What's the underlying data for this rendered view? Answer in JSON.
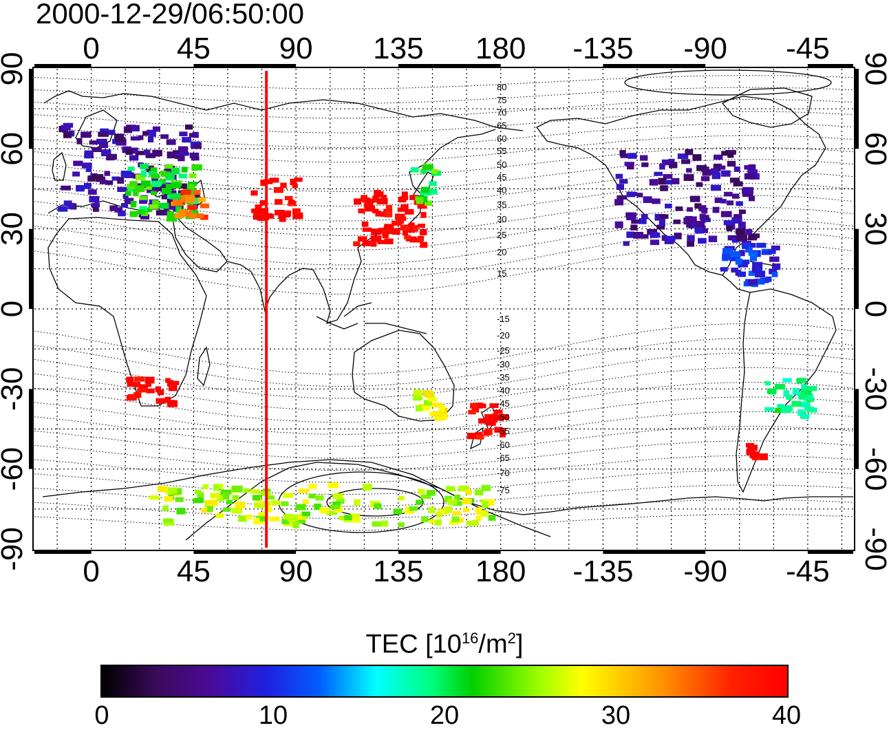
{
  "title": "2000-12-29/06:50:00",
  "map": {
    "projection": "cylindrical-equidistant",
    "lon_ticks_top": [
      "0",
      "45",
      "90",
      "135",
      "180",
      "-135",
      "-90",
      "-45"
    ],
    "lon_ticks_bottom": [
      "0",
      "45",
      "90",
      "135",
      "180",
      "-135",
      "-90",
      "-45"
    ],
    "lat_ticks_left": [
      "90",
      "60",
      "30",
      "0",
      "-30",
      "-60",
      "-90"
    ],
    "lat_ticks_right": [
      "90",
      "60",
      "30",
      "0",
      "-30",
      "-60",
      "-90"
    ],
    "magnetic_latitude_labels": [
      "80",
      "75",
      "70",
      "65",
      "60",
      "55",
      "50",
      "45",
      "40",
      "35",
      "30",
      "25",
      "20",
      "15",
      "-15",
      "-20",
      "-25",
      "-30",
      "-35",
      "-40",
      "-45",
      "-50",
      "-55",
      "-60",
      "-65",
      "-70",
      "-75"
    ],
    "meridian_marker": {
      "longitude": 77,
      "color": "#ff0000"
    },
    "grid": "dotted"
  },
  "colorbar": {
    "label_main": "TEC  [10",
    "label_sup1": "16",
    "label_mid": "/m",
    "label_sup2": "2",
    "label_end": "]",
    "ticks": [
      "0",
      "10",
      "20",
      "30",
      "40"
    ],
    "range": [
      0,
      40
    ],
    "colormap": "jet-like (black-purple-blue-cyan-green-yellow-red)"
  },
  "chart_data": {
    "type": "heatmap",
    "title": "2000-12-29/06:50:00",
    "xlabel": "",
    "ylabel": "",
    "xlim": [
      -25,
      335
    ],
    "ylim": [
      -90,
      90
    ],
    "value_range": [
      0,
      40
    ],
    "regions": [
      {
        "lon": [
          -15,
          45
        ],
        "lat": [
          35,
          70
        ],
        "tec": 6
      },
      {
        "lon": [
          15,
          45
        ],
        "lat": [
          35,
          55
        ],
        "tec": 22
      },
      {
        "lon": [
          35,
          50
        ],
        "lat": [
          35,
          45
        ],
        "tec": 34
      },
      {
        "lon": [
          70,
          90
        ],
        "lat": [
          35,
          50
        ],
        "tec": 40
      },
      {
        "lon": [
          115,
          145
        ],
        "lat": [
          25,
          45
        ],
        "tec": 40
      },
      {
        "lon": [
          140,
          150
        ],
        "lat": [
          40,
          55
        ],
        "tec": 22
      },
      {
        "lon": [
          230,
          290
        ],
        "lat": [
          25,
          60
        ],
        "tec": 6
      },
      {
        "lon": [
          275,
          300
        ],
        "lat": [
          10,
          25
        ],
        "tec": 10
      },
      {
        "lon": [
          15,
          35
        ],
        "lat": [
          -35,
          -25
        ],
        "tec": 40
      },
      {
        "lon": [
          165,
          180
        ],
        "lat": [
          -48,
          -35
        ],
        "tec": 40
      },
      {
        "lon": [
          140,
          155
        ],
        "lat": [
          -40,
          -30
        ],
        "tec": 28
      },
      {
        "lon": [
          295,
          315
        ],
        "lat": [
          -40,
          -25
        ],
        "tec": 20
      },
      {
        "lon": [
          285,
          300
        ],
        "lat": [
          -55,
          -50
        ],
        "tec": 40
      },
      {
        "lon": [
          25,
          175
        ],
        "lat": [
          -80,
          -65
        ],
        "tec": 26
      }
    ]
  }
}
